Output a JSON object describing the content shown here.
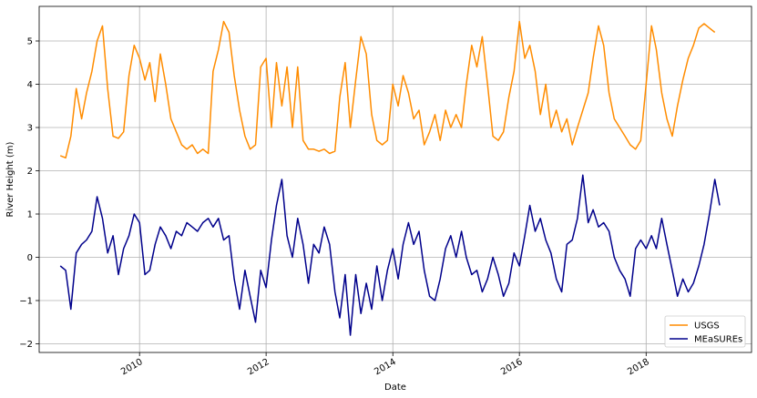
{
  "chart_data": {
    "type": "line",
    "xlabel": "Date",
    "ylabel": "River Height (m)",
    "xlim": [
      "2008-06-01",
      "2019-09-01"
    ],
    "ylim": [
      -2.2,
      5.8
    ],
    "x_ticks": [
      {
        "date": "2010-01-01",
        "label": "2010"
      },
      {
        "date": "2012-01-01",
        "label": "2012"
      },
      {
        "date": "2014-01-01",
        "label": "2014"
      },
      {
        "date": "2016-01-01",
        "label": "2016"
      },
      {
        "date": "2018-01-01",
        "label": "2018"
      }
    ],
    "y_ticks": [
      -2,
      -1,
      0,
      1,
      2,
      3,
      4,
      5
    ],
    "grid": true,
    "legend_position": "lower-right",
    "series": [
      {
        "name": "USGS",
        "color": "#ff8c00",
        "points": [
          [
            "2008-10-01",
            2.35
          ],
          [
            "2008-11-01",
            2.3
          ],
          [
            "2008-12-01",
            2.8
          ],
          [
            "2009-01-01",
            3.9
          ],
          [
            "2009-02-01",
            3.2
          ],
          [
            "2009-03-01",
            3.8
          ],
          [
            "2009-04-01",
            4.3
          ],
          [
            "2009-05-01",
            5.0
          ],
          [
            "2009-06-01",
            5.35
          ],
          [
            "2009-07-01",
            3.9
          ],
          [
            "2009-08-01",
            2.8
          ],
          [
            "2009-09-01",
            2.75
          ],
          [
            "2009-10-01",
            2.9
          ],
          [
            "2009-11-01",
            4.2
          ],
          [
            "2009-12-01",
            4.9
          ],
          [
            "2010-01-01",
            4.6
          ],
          [
            "2010-02-01",
            4.1
          ],
          [
            "2010-03-01",
            4.5
          ],
          [
            "2010-04-01",
            3.6
          ],
          [
            "2010-05-01",
            4.7
          ],
          [
            "2010-06-01",
            4.0
          ],
          [
            "2010-07-01",
            3.2
          ],
          [
            "2010-08-01",
            2.9
          ],
          [
            "2010-09-01",
            2.6
          ],
          [
            "2010-10-01",
            2.5
          ],
          [
            "2010-11-01",
            2.6
          ],
          [
            "2010-12-01",
            2.4
          ],
          [
            "2011-01-01",
            2.5
          ],
          [
            "2011-02-01",
            2.4
          ],
          [
            "2011-03-01",
            4.3
          ],
          [
            "2011-04-01",
            4.8
          ],
          [
            "2011-05-01",
            5.45
          ],
          [
            "2011-06-01",
            5.2
          ],
          [
            "2011-07-01",
            4.2
          ],
          [
            "2011-08-01",
            3.4
          ],
          [
            "2011-09-01",
            2.8
          ],
          [
            "2011-10-01",
            2.5
          ],
          [
            "2011-11-01",
            2.6
          ],
          [
            "2011-12-01",
            4.4
          ],
          [
            "2012-01-01",
            4.6
          ],
          [
            "2012-02-01",
            3.0
          ],
          [
            "2012-03-01",
            4.5
          ],
          [
            "2012-04-01",
            3.5
          ],
          [
            "2012-05-01",
            4.4
          ],
          [
            "2012-06-01",
            3.0
          ],
          [
            "2012-07-01",
            4.4
          ],
          [
            "2012-08-01",
            2.7
          ],
          [
            "2012-09-01",
            2.5
          ],
          [
            "2012-10-01",
            2.5
          ],
          [
            "2012-11-01",
            2.45
          ],
          [
            "2012-12-01",
            2.5
          ],
          [
            "2013-01-01",
            2.4
          ],
          [
            "2013-02-01",
            2.45
          ],
          [
            "2013-03-01",
            3.7
          ],
          [
            "2013-04-01",
            4.5
          ],
          [
            "2013-05-01",
            3.0
          ],
          [
            "2013-06-01",
            4.1
          ],
          [
            "2013-07-01",
            5.1
          ],
          [
            "2013-08-01",
            4.7
          ],
          [
            "2013-09-01",
            3.3
          ],
          [
            "2013-10-01",
            2.7
          ],
          [
            "2013-11-01",
            2.6
          ],
          [
            "2013-12-01",
            2.7
          ],
          [
            "2014-01-01",
            4.0
          ],
          [
            "2014-02-01",
            3.5
          ],
          [
            "2014-03-01",
            4.2
          ],
          [
            "2014-04-01",
            3.8
          ],
          [
            "2014-05-01",
            3.2
          ],
          [
            "2014-06-01",
            3.4
          ],
          [
            "2014-07-01",
            2.6
          ],
          [
            "2014-08-01",
            2.9
          ],
          [
            "2014-09-01",
            3.3
          ],
          [
            "2014-10-01",
            2.7
          ],
          [
            "2014-11-01",
            3.4
          ],
          [
            "2014-12-01",
            3.0
          ],
          [
            "2015-01-01",
            3.3
          ],
          [
            "2015-02-01",
            3.0
          ],
          [
            "2015-03-01",
            4.0
          ],
          [
            "2015-04-01",
            4.9
          ],
          [
            "2015-05-01",
            4.4
          ],
          [
            "2015-06-01",
            5.1
          ],
          [
            "2015-07-01",
            4.0
          ],
          [
            "2015-08-01",
            2.8
          ],
          [
            "2015-09-01",
            2.7
          ],
          [
            "2015-10-01",
            2.9
          ],
          [
            "2015-11-01",
            3.7
          ],
          [
            "2015-12-01",
            4.3
          ],
          [
            "2016-01-01",
            5.45
          ],
          [
            "2016-02-01",
            4.6
          ],
          [
            "2016-03-01",
            4.9
          ],
          [
            "2016-04-01",
            4.3
          ],
          [
            "2016-05-01",
            3.3
          ],
          [
            "2016-06-01",
            4.0
          ],
          [
            "2016-07-01",
            3.0
          ],
          [
            "2016-08-01",
            3.4
          ],
          [
            "2016-09-01",
            2.9
          ],
          [
            "2016-10-01",
            3.2
          ],
          [
            "2016-11-01",
            2.6
          ],
          [
            "2016-12-01",
            3.0
          ],
          [
            "2017-01-01",
            3.4
          ],
          [
            "2017-02-01",
            3.8
          ],
          [
            "2017-03-01",
            4.6
          ],
          [
            "2017-04-01",
            5.35
          ],
          [
            "2017-05-01",
            4.9
          ],
          [
            "2017-06-01",
            3.8
          ],
          [
            "2017-07-01",
            3.2
          ],
          [
            "2017-08-01",
            3.0
          ],
          [
            "2017-09-01",
            2.8
          ],
          [
            "2017-10-01",
            2.6
          ],
          [
            "2017-11-01",
            2.5
          ],
          [
            "2017-12-01",
            2.7
          ],
          [
            "2018-01-01",
            4.0
          ],
          [
            "2018-02-01",
            5.35
          ],
          [
            "2018-03-01",
            4.8
          ],
          [
            "2018-04-01",
            3.8
          ],
          [
            "2018-05-01",
            3.2
          ],
          [
            "2018-06-01",
            2.8
          ],
          [
            "2018-07-01",
            3.5
          ],
          [
            "2018-08-01",
            4.1
          ],
          [
            "2018-09-01",
            4.6
          ],
          [
            "2018-10-01",
            4.9
          ],
          [
            "2018-11-01",
            5.3
          ],
          [
            "2018-12-01",
            5.4
          ],
          [
            "2019-01-01",
            5.3
          ],
          [
            "2019-02-01",
            5.2
          ]
        ]
      },
      {
        "name": "MEaSUREs",
        "color": "#00008b",
        "points": [
          [
            "2008-10-01",
            -0.2
          ],
          [
            "2008-11-01",
            -0.3
          ],
          [
            "2008-12-01",
            -1.2
          ],
          [
            "2009-01-01",
            0.1
          ],
          [
            "2009-02-01",
            0.3
          ],
          [
            "2009-03-01",
            0.4
          ],
          [
            "2009-04-01",
            0.6
          ],
          [
            "2009-05-01",
            1.4
          ],
          [
            "2009-06-01",
            0.9
          ],
          [
            "2009-07-01",
            0.1
          ],
          [
            "2009-08-01",
            0.5
          ],
          [
            "2009-09-01",
            -0.4
          ],
          [
            "2009-10-01",
            0.2
          ],
          [
            "2009-11-01",
            0.5
          ],
          [
            "2009-12-01",
            1.0
          ],
          [
            "2010-01-01",
            0.8
          ],
          [
            "2010-02-01",
            -0.4
          ],
          [
            "2010-03-01",
            -0.3
          ],
          [
            "2010-04-01",
            0.3
          ],
          [
            "2010-05-01",
            0.7
          ],
          [
            "2010-06-01",
            0.5
          ],
          [
            "2010-07-01",
            0.2
          ],
          [
            "2010-08-01",
            0.6
          ],
          [
            "2010-09-01",
            0.5
          ],
          [
            "2010-10-01",
            0.8
          ],
          [
            "2010-11-01",
            0.7
          ],
          [
            "2010-12-01",
            0.6
          ],
          [
            "2011-01-01",
            0.8
          ],
          [
            "2011-02-01",
            0.9
          ],
          [
            "2011-03-01",
            0.7
          ],
          [
            "2011-04-01",
            0.9
          ],
          [
            "2011-05-01",
            0.4
          ],
          [
            "2011-06-01",
            0.5
          ],
          [
            "2011-07-01",
            -0.5
          ],
          [
            "2011-08-01",
            -1.2
          ],
          [
            "2011-09-01",
            -0.3
          ],
          [
            "2011-10-01",
            -0.9
          ],
          [
            "2011-11-01",
            -1.5
          ],
          [
            "2011-12-01",
            -0.3
          ],
          [
            "2012-01-01",
            -0.7
          ],
          [
            "2012-02-01",
            0.4
          ],
          [
            "2012-03-01",
            1.2
          ],
          [
            "2012-04-01",
            1.8
          ],
          [
            "2012-05-01",
            0.5
          ],
          [
            "2012-06-01",
            0.0
          ],
          [
            "2012-07-01",
            0.9
          ],
          [
            "2012-08-01",
            0.3
          ],
          [
            "2012-09-01",
            -0.6
          ],
          [
            "2012-10-01",
            0.3
          ],
          [
            "2012-11-01",
            0.1
          ],
          [
            "2012-12-01",
            0.7
          ],
          [
            "2013-01-01",
            0.3
          ],
          [
            "2013-02-01",
            -0.8
          ],
          [
            "2013-03-01",
            -1.4
          ],
          [
            "2013-04-01",
            -0.4
          ],
          [
            "2013-05-01",
            -1.8
          ],
          [
            "2013-06-01",
            -0.4
          ],
          [
            "2013-07-01",
            -1.3
          ],
          [
            "2013-08-01",
            -0.6
          ],
          [
            "2013-09-01",
            -1.2
          ],
          [
            "2013-10-01",
            -0.2
          ],
          [
            "2013-11-01",
            -1.0
          ],
          [
            "2013-12-01",
            -0.3
          ],
          [
            "2014-01-01",
            0.2
          ],
          [
            "2014-02-01",
            -0.5
          ],
          [
            "2014-03-01",
            0.3
          ],
          [
            "2014-04-01",
            0.8
          ],
          [
            "2014-05-01",
            0.3
          ],
          [
            "2014-06-01",
            0.6
          ],
          [
            "2014-07-01",
            -0.3
          ],
          [
            "2014-08-01",
            -0.9
          ],
          [
            "2014-09-01",
            -1.0
          ],
          [
            "2014-10-01",
            -0.5
          ],
          [
            "2014-11-01",
            0.2
          ],
          [
            "2014-12-01",
            0.5
          ],
          [
            "2015-01-01",
            0.0
          ],
          [
            "2015-02-01",
            0.6
          ],
          [
            "2015-03-01",
            0.0
          ],
          [
            "2015-04-01",
            -0.4
          ],
          [
            "2015-05-01",
            -0.3
          ],
          [
            "2015-06-01",
            -0.8
          ],
          [
            "2015-07-01",
            -0.5
          ],
          [
            "2015-08-01",
            0.0
          ],
          [
            "2015-09-01",
            -0.4
          ],
          [
            "2015-10-01",
            -0.9
          ],
          [
            "2015-11-01",
            -0.6
          ],
          [
            "2015-12-01",
            0.1
          ],
          [
            "2016-01-01",
            -0.2
          ],
          [
            "2016-02-01",
            0.5
          ],
          [
            "2016-03-01",
            1.2
          ],
          [
            "2016-04-01",
            0.6
          ],
          [
            "2016-05-01",
            0.9
          ],
          [
            "2016-06-01",
            0.4
          ],
          [
            "2016-07-01",
            0.1
          ],
          [
            "2016-08-01",
            -0.5
          ],
          [
            "2016-09-01",
            -0.8
          ],
          [
            "2016-10-01",
            0.3
          ],
          [
            "2016-11-01",
            0.4
          ],
          [
            "2016-12-01",
            0.9
          ],
          [
            "2017-01-01",
            1.9
          ],
          [
            "2017-02-01",
            0.8
          ],
          [
            "2017-03-01",
            1.1
          ],
          [
            "2017-04-01",
            0.7
          ],
          [
            "2017-05-01",
            0.8
          ],
          [
            "2017-06-01",
            0.6
          ],
          [
            "2017-07-01",
            0.0
          ],
          [
            "2017-08-01",
            -0.3
          ],
          [
            "2017-09-01",
            -0.5
          ],
          [
            "2017-10-01",
            -0.9
          ],
          [
            "2017-11-01",
            0.2
          ],
          [
            "2017-12-01",
            0.4
          ],
          [
            "2018-01-01",
            0.2
          ],
          [
            "2018-02-01",
            0.5
          ],
          [
            "2018-03-01",
            0.2
          ],
          [
            "2018-04-01",
            0.9
          ],
          [
            "2018-05-01",
            0.3
          ],
          [
            "2018-06-01",
            -0.3
          ],
          [
            "2018-07-01",
            -0.9
          ],
          [
            "2018-08-01",
            -0.5
          ],
          [
            "2018-09-01",
            -0.8
          ],
          [
            "2018-10-01",
            -0.6
          ],
          [
            "2018-11-01",
            -0.2
          ],
          [
            "2018-12-01",
            0.3
          ],
          [
            "2019-01-01",
            1.0
          ],
          [
            "2019-02-01",
            1.8
          ],
          [
            "2019-03-01",
            1.2
          ]
        ]
      }
    ]
  }
}
